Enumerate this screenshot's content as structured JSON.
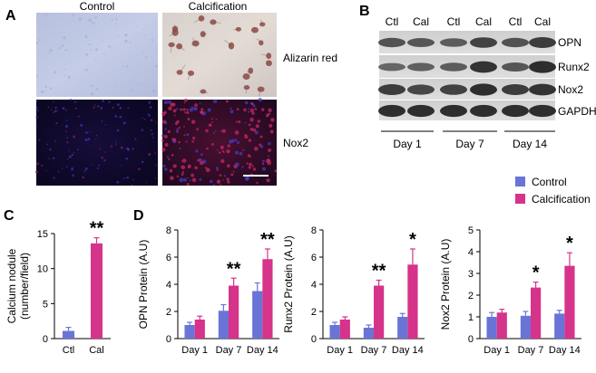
{
  "colors": {
    "control": "#6a74d6",
    "calcification": "#d6338a",
    "axis": "#000000"
  },
  "panels": {
    "A": "A",
    "B": "B",
    "C": "C",
    "D": "D"
  },
  "panel_a": {
    "col_labels": [
      "Control",
      "Calcification"
    ],
    "row_labels": [
      "Alizarin red",
      "Nox2"
    ]
  },
  "panel_b": {
    "lane_labels": [
      "Ctl",
      "Cal",
      "Ctl",
      "Cal",
      "Ctl",
      "Cal"
    ],
    "band_labels": [
      "OPN",
      "Runx2",
      "Nox2",
      "GAPDH"
    ],
    "day_labels": [
      "Day 1",
      "Day 7",
      "Day 14"
    ]
  },
  "legend": [
    "Control",
    "Calcification"
  ],
  "chart_data": [
    {
      "type": "bar",
      "id": "calcium",
      "categories": [
        "Ctl",
        "Cal"
      ],
      "values": [
        1.1,
        13.6
      ],
      "errors": [
        0.5,
        0.8
      ],
      "ylabel": "Calcium nodule (number/field)",
      "ylabel_lines": [
        "Calcium nodule",
        "(number/field)"
      ],
      "ylim": [
        0,
        15
      ],
      "yticks": [
        0,
        5,
        10,
        15
      ],
      "significance": [
        "",
        "**"
      ]
    },
    {
      "type": "bar",
      "id": "opn",
      "categories": [
        "Day 1",
        "Day 7",
        "Day 14"
      ],
      "series": [
        {
          "name": "Control",
          "values": [
            1.0,
            2.05,
            3.5
          ],
          "errors": [
            0.2,
            0.45,
            0.6
          ]
        },
        {
          "name": "Calcification",
          "values": [
            1.4,
            3.9,
            5.85
          ],
          "errors": [
            0.25,
            0.55,
            0.75
          ]
        }
      ],
      "ylabel": "OPN Protein (A.U)",
      "ylim": [
        0,
        8
      ],
      "yticks": [
        0,
        2,
        4,
        6,
        8
      ],
      "significance": [
        "",
        "**",
        "**"
      ]
    },
    {
      "type": "bar",
      "id": "runx2",
      "categories": [
        "Day 1",
        "Day 7",
        "Day 14"
      ],
      "series": [
        {
          "name": "Control",
          "values": [
            1.0,
            0.8,
            1.6
          ],
          "errors": [
            0.2,
            0.2,
            0.25
          ]
        },
        {
          "name": "Calcification",
          "values": [
            1.4,
            3.9,
            5.45
          ],
          "errors": [
            0.2,
            0.4,
            1.15
          ]
        }
      ],
      "ylabel": "Runx2 Protein (A.U)",
      "ylim": [
        0,
        8
      ],
      "yticks": [
        0,
        2,
        4,
        6,
        8
      ],
      "significance": [
        "",
        "**",
        "*"
      ]
    },
    {
      "type": "bar",
      "id": "nox2",
      "categories": [
        "Day 1",
        "Day 7",
        "Day 14"
      ],
      "series": [
        {
          "name": "Control",
          "values": [
            1.0,
            1.05,
            1.15
          ],
          "errors": [
            0.2,
            0.2,
            0.15
          ]
        },
        {
          "name": "Calcification",
          "values": [
            1.2,
            2.35,
            3.35
          ],
          "errors": [
            0.15,
            0.25,
            0.6
          ]
        }
      ],
      "ylabel": "Nox2 Protein (A.U)",
      "ylim": [
        0,
        5
      ],
      "yticks": [
        0,
        1,
        2,
        3,
        4,
        5
      ],
      "significance": [
        "",
        "*",
        "*"
      ]
    }
  ]
}
